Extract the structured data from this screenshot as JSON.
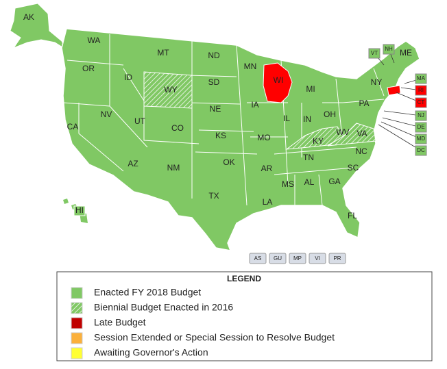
{
  "states": [
    {
      "label": "AK"
    },
    {
      "label": "WA"
    },
    {
      "label": "OR"
    },
    {
      "label": "CA"
    },
    {
      "label": "ID"
    },
    {
      "label": "NV"
    },
    {
      "label": "MT"
    },
    {
      "label": "WY",
      "pattern": "hatch"
    },
    {
      "label": "UT"
    },
    {
      "label": "AZ"
    },
    {
      "label": "CO"
    },
    {
      "label": "NM"
    },
    {
      "label": "ND"
    },
    {
      "label": "SD"
    },
    {
      "label": "NE"
    },
    {
      "label": "KS"
    },
    {
      "label": "OK"
    },
    {
      "label": "TX"
    },
    {
      "label": "MN"
    },
    {
      "label": "IA"
    },
    {
      "label": "MO"
    },
    {
      "label": "AR"
    },
    {
      "label": "LA"
    },
    {
      "label": "WI",
      "color": "#ff0000"
    },
    {
      "label": "IL"
    },
    {
      "label": "MI"
    },
    {
      "label": "IN"
    },
    {
      "label": "OH"
    },
    {
      "label": "KY",
      "pattern": "hatch"
    },
    {
      "label": "TN"
    },
    {
      "label": "MS"
    },
    {
      "label": "AL"
    },
    {
      "label": "GA"
    },
    {
      "label": "FL"
    },
    {
      "label": "SC"
    },
    {
      "label": "NC"
    },
    {
      "label": "VA",
      "pattern": "hatch"
    },
    {
      "label": "WV"
    },
    {
      "label": "PA"
    },
    {
      "label": "NY"
    },
    {
      "label": "ME"
    },
    {
      "label": "HI"
    }
  ],
  "callouts": [
    {
      "label": "VT"
    },
    {
      "label": "NH"
    },
    {
      "label": "MA"
    },
    {
      "label": "RI",
      "color": "#ff0000"
    },
    {
      "label": "CT",
      "color": "#ff0000"
    },
    {
      "label": "NJ"
    },
    {
      "label": "DE"
    },
    {
      "label": "MD"
    },
    {
      "label": "DC"
    }
  ],
  "territories": [
    "AS",
    "GU",
    "MP",
    "VI",
    "PR"
  ],
  "legend": {
    "title": "LEGEND",
    "items": [
      {
        "label": "Enacted FY 2018 Budget",
        "color": "#80c864"
      },
      {
        "label": "Biennial Budget Enacted in 2016",
        "color": "#80c864",
        "pattern": "hatch"
      },
      {
        "label": "Late Budget",
        "color": "#c00000"
      },
      {
        "label": "Session Extended or Special Session to Resolve Budget",
        "color": "#fbb03b"
      },
      {
        "label": "Awaiting Governor's Action",
        "color": "#ffff33"
      }
    ]
  }
}
